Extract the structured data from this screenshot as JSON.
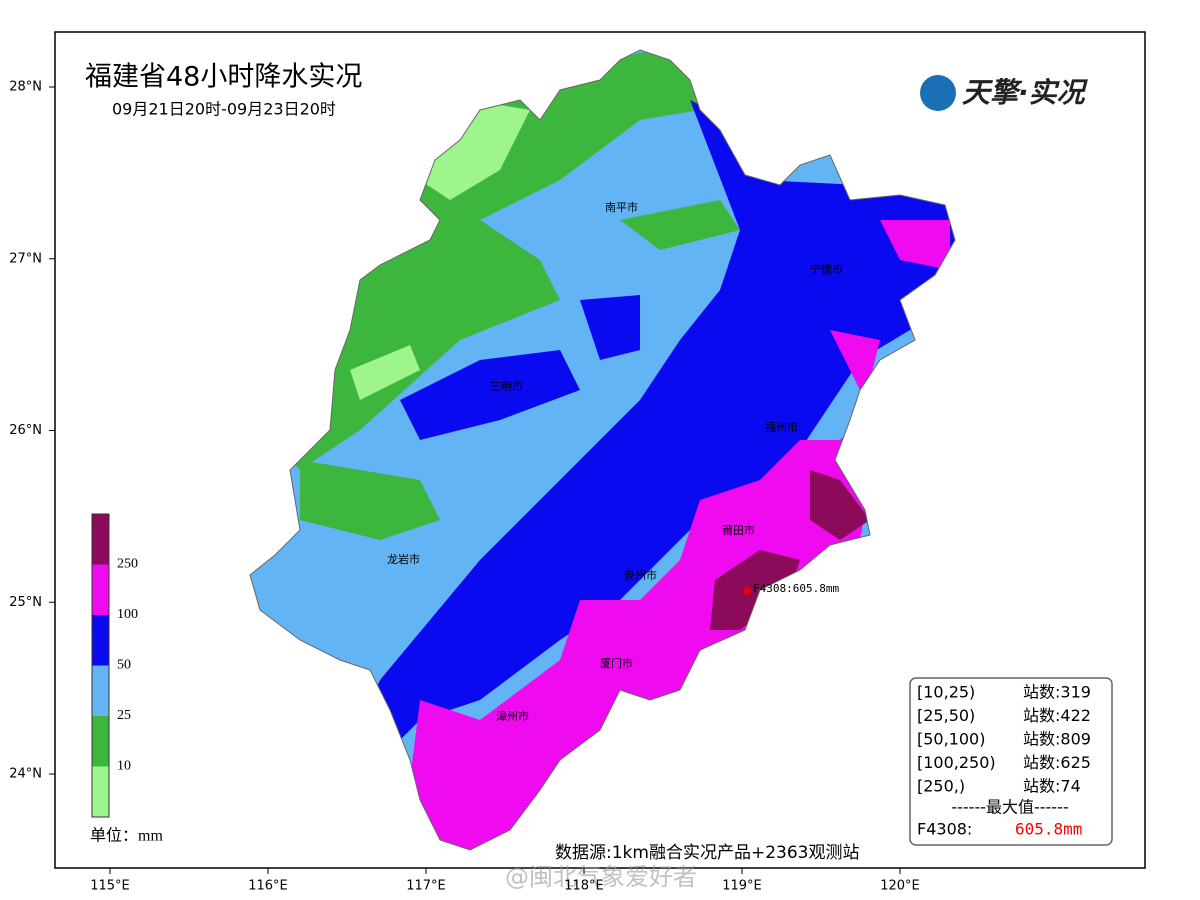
{
  "header": {
    "title": "福建省48小时降水实况",
    "subtitle": "09月21日20时-09月23日20时",
    "logo": "天擎·实况"
  },
  "axes": {
    "xticks": [
      {
        "value": 115,
        "label": "115°E"
      },
      {
        "value": 116,
        "label": "116°E"
      },
      {
        "value": 117,
        "label": "117°E"
      },
      {
        "value": 118,
        "label": "118°E"
      },
      {
        "value": 119,
        "label": "119°E"
      },
      {
        "value": 120,
        "label": "120°E"
      }
    ],
    "yticks": [
      {
        "value": 28,
        "label": "28°N"
      },
      {
        "value": 27,
        "label": "27°N"
      },
      {
        "value": 26,
        "label": "26°N"
      },
      {
        "value": 25,
        "label": "25°N"
      },
      {
        "value": 24,
        "label": "24°N"
      }
    ]
  },
  "cities": [
    "南平市",
    "宁德市",
    "三明市",
    "福州市",
    "龙岩市",
    "莆田市",
    "泉州市",
    "厦门市",
    "漳州市"
  ],
  "max_station_label": "F4308:605.8mm",
  "legend": {
    "unit": "单位：mm",
    "ticks": [
      10,
      25,
      50,
      100,
      250
    ],
    "colors": [
      "#9ef58c",
      "#3db63d",
      "#62b4f5",
      "#0a0af0",
      "#f00af0",
      "#8b0a5a"
    ]
  },
  "stats": {
    "rows": [
      [
        "[10,25)",
        "站数:319"
      ],
      [
        "[25,50)",
        "站数:422"
      ],
      [
        "[50,100)",
        "站数:809"
      ],
      [
        "[100,250)",
        "站数:625"
      ],
      [
        "[250,)",
        "站数:74"
      ]
    ],
    "max_heading": "------最大值------",
    "max_station": "F4308:",
    "max_value": "605.8mm"
  },
  "source": "数据源:1km融合实况产品+2363观测站",
  "watermark": "@闽北气象爱好者"
}
